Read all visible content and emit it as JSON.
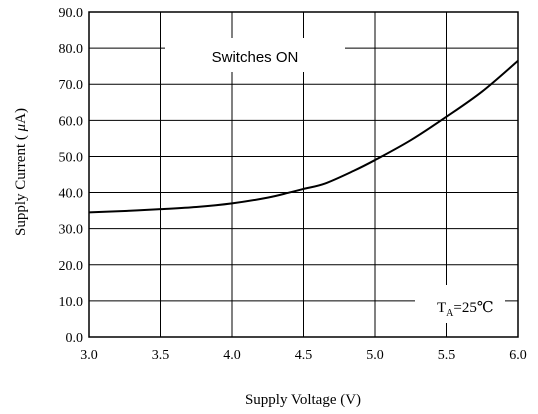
{
  "chart_data": {
    "type": "line",
    "xlabel": "Supply Voltage (V)",
    "ylabel_prefix": "Supply Current ( ",
    "ylabel_mu": "μ",
    "ylabel_suffix": "A)",
    "xlim": [
      3.0,
      6.0
    ],
    "ylim": [
      0,
      90
    ],
    "x_ticks": [
      "3.0",
      "3.5",
      "4.0",
      "4.5",
      "5.0",
      "5.5",
      "6.0"
    ],
    "y_ticks": [
      "0.0",
      "10.0",
      "20.0",
      "30.0",
      "40.0",
      "50.0",
      "60.0",
      "70.0",
      "80.0",
      "90.0"
    ],
    "grid": true,
    "annotations": {
      "switches": "Switches ON",
      "ta_T": "T",
      "ta_sub": "A",
      "ta_value": "=25℃"
    },
    "series": [
      {
        "x": [
          3.0,
          3.25,
          3.5,
          3.75,
          4.0,
          4.25,
          4.4,
          4.5,
          4.65,
          4.85,
          5.0,
          5.25,
          5.5,
          5.75,
          6.0
        ],
        "y": [
          34.5,
          34.9,
          35.4,
          36.0,
          37.0,
          38.6,
          40.0,
          41.0,
          42.5,
          46.0,
          49.0,
          54.5,
          61.0,
          68.0,
          76.5
        ]
      }
    ]
  }
}
